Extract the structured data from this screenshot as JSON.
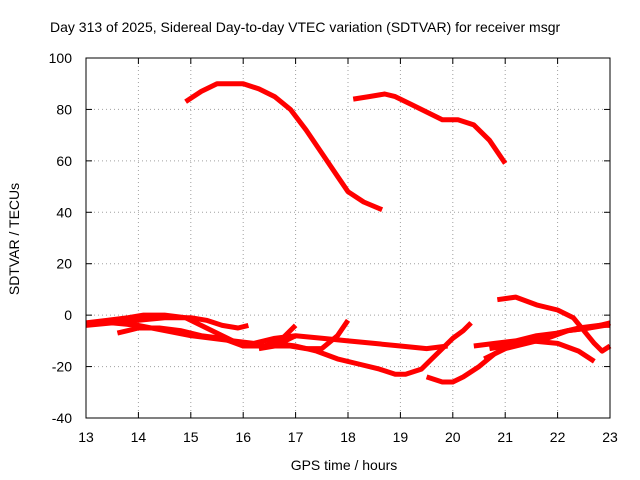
{
  "chart_data": {
    "type": "line",
    "title": "Day 313 of 2025, Sidereal Day-to-day VTEC variation (SDTVAR) for receiver msgr",
    "xlabel": "GPS time / hours",
    "ylabel": "SDTVAR / TECUs",
    "xlim": [
      13,
      23
    ],
    "ylim": [
      -40,
      100
    ],
    "xticks": [
      13,
      14,
      15,
      16,
      17,
      18,
      19,
      20,
      21,
      22,
      23
    ],
    "yticks": [
      -40,
      -20,
      0,
      20,
      40,
      60,
      80,
      100
    ],
    "grid": true,
    "color": "#ff0000",
    "series": [
      {
        "name": "s1",
        "x": [
          14.9,
          15.2,
          15.5,
          15.8,
          16.0,
          16.3,
          16.6,
          16.9,
          17.2,
          17.5,
          17.8,
          18.0,
          18.3,
          18.65
        ],
        "y": [
          83,
          87,
          90,
          90,
          90,
          88,
          85,
          80,
          72,
          63,
          54,
          48,
          44,
          41
        ]
      },
      {
        "name": "s2",
        "x": [
          18.1,
          18.4,
          18.7,
          18.9,
          19.2,
          19.5,
          19.8,
          20.1,
          20.4,
          20.7,
          21.0
        ],
        "y": [
          84,
          85,
          86,
          85,
          82,
          79,
          76,
          76,
          74,
          68,
          59
        ]
      },
      {
        "name": "s3",
        "x": [
          13.1,
          13.5,
          14.0,
          14.5,
          15.0,
          15.3,
          15.6,
          15.9,
          16.1
        ],
        "y": [
          -3,
          -3,
          -2,
          -1,
          -1,
          -2,
          -4,
          -5,
          -4
        ]
      },
      {
        "name": "s4",
        "x": [
          13.0,
          13.4,
          13.8,
          14.1,
          14.5,
          14.9,
          15.3,
          15.7,
          16.0,
          16.4,
          16.8,
          17.0
        ],
        "y": [
          -3,
          -2,
          -1,
          0,
          0,
          -1,
          -5,
          -9,
          -12,
          -12,
          -10,
          -8
        ]
      },
      {
        "name": "s5",
        "x": [
          13.0,
          13.5,
          14.0,
          14.5,
          15.0,
          15.4,
          15.8,
          16.2,
          16.6,
          17.0,
          17.5,
          18.0,
          18.5,
          19.0,
          19.5,
          19.9
        ],
        "y": [
          -4,
          -3,
          -4,
          -6,
          -8,
          -9,
          -10,
          -11,
          -9,
          -8,
          -9,
          -10,
          -11,
          -12,
          -13,
          -12
        ]
      },
      {
        "name": "s6",
        "x": [
          13.6,
          14.0,
          14.4,
          14.8,
          15.2,
          15.6,
          16.0,
          16.4,
          16.7,
          17.0
        ],
        "y": [
          -7,
          -5,
          -5,
          -6,
          -8,
          -9,
          -12,
          -12,
          -10,
          -4
        ]
      },
      {
        "name": "s7",
        "x": [
          16.6,
          17.0,
          17.4,
          17.8,
          18.2,
          18.6,
          18.9,
          19.1,
          19.4,
          19.6,
          19.8,
          20.0,
          20.2,
          20.35
        ],
        "y": [
          -11,
          -12,
          -14,
          -17,
          -19,
          -21,
          -23,
          -23,
          -21,
          -17,
          -13,
          -9,
          -6,
          -3
        ]
      },
      {
        "name": "s8",
        "x": [
          16.3,
          16.6,
          16.9,
          17.2,
          17.5,
          17.8,
          18.0
        ],
        "y": [
          -13,
          -12,
          -12,
          -13,
          -13,
          -8,
          -2
        ]
      },
      {
        "name": "s9",
        "x": [
          19.5,
          19.8,
          20.0,
          20.2,
          20.5,
          20.8,
          21.1,
          21.5,
          22.0,
          22.4,
          22.7
        ],
        "y": [
          -24,
          -26,
          -26,
          -24,
          -20,
          -15,
          -12,
          -10,
          -11,
          -14,
          -18
        ]
      },
      {
        "name": "s10",
        "x": [
          20.4,
          20.8,
          21.2,
          21.6,
          22.0,
          22.4,
          22.8,
          23.0
        ],
        "y": [
          -12,
          -11,
          -10,
          -8,
          -7,
          -5,
          -4,
          -3
        ]
      },
      {
        "name": "s11",
        "x": [
          20.6,
          21.0,
          21.4,
          21.8,
          22.2,
          22.6,
          22.8,
          23.0
        ],
        "y": [
          -17,
          -13,
          -11,
          -9,
          -6,
          -5,
          -4,
          -4
        ]
      },
      {
        "name": "s12",
        "x": [
          20.85,
          21.2,
          21.6,
          22.0,
          22.3,
          22.5,
          22.7,
          22.85,
          23.0
        ],
        "y": [
          6,
          7,
          4,
          2,
          -1,
          -6,
          -11,
          -14,
          -12
        ]
      },
      {
        "name": "s13",
        "x": [
          20.7,
          21.0,
          21.4,
          21.8,
          22.2,
          22.6,
          22.9,
          23.0
        ],
        "y": [
          -13,
          -12,
          -10,
          -8,
          -6,
          -5,
          -4,
          -3
        ]
      }
    ]
  }
}
